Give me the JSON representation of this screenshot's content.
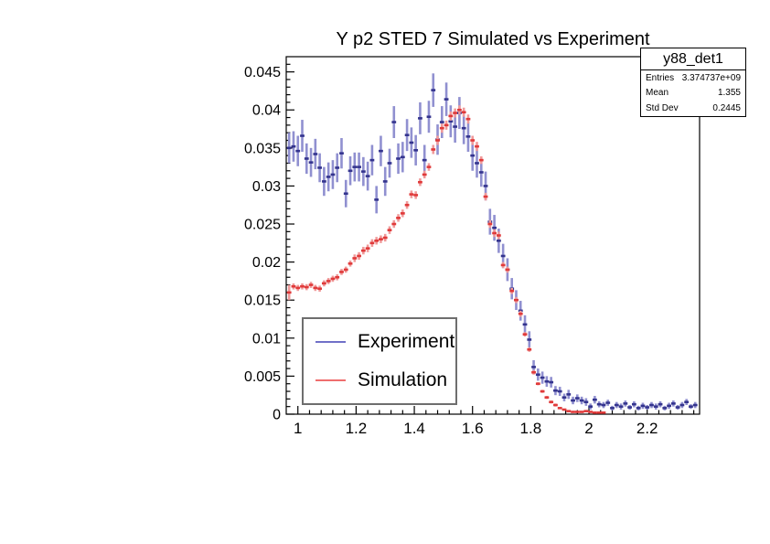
{
  "title": "Y p2 STED 7 Simulated vs Experiment",
  "stats_box": {
    "title": "y88_det1",
    "rows": [
      {
        "label": "Entries",
        "value": "3.374737e+09"
      },
      {
        "label": "Mean",
        "value": "1.355"
      },
      {
        "label": "Std Dev",
        "value": "0.2445"
      }
    ]
  },
  "legend": {
    "entries": [
      {
        "label": "Experiment",
        "color": "#7070c8"
      },
      {
        "label": "Simulation",
        "color": "#ef6e6e"
      }
    ]
  },
  "colors": {
    "frame": "#000000",
    "experiment_marker": "#34348e",
    "experiment_bar": "#9090d0",
    "simulation_marker": "#e03a3a",
    "simulation_bar": "#f09a9a"
  },
  "chart_data": {
    "type": "scatter",
    "title": "Y p2 STED 7 Simulated vs Experiment",
    "xlabel": "",
    "ylabel": "",
    "grid": false,
    "legend_position": "inside-bottom-left",
    "xlim": [
      0.96,
      2.38
    ],
    "ylim": [
      0,
      0.047
    ],
    "x_ticks": [
      1,
      1.2,
      1.4,
      1.6,
      1.8,
      2,
      2.2
    ],
    "x_tick_labels": [
      "1",
      "1.2",
      "1.4",
      "1.6",
      "1.8",
      "2",
      "2.2"
    ],
    "x_minor_step": 0.04,
    "y_ticks": [
      0,
      0.005,
      0.01,
      0.015,
      0.02,
      0.025,
      0.03,
      0.035,
      0.04,
      0.045
    ],
    "y_tick_labels": [
      "0",
      "0.005",
      "0.01",
      "0.015",
      "0.02",
      "0.025",
      "0.03",
      "0.035",
      "0.04",
      "0.045"
    ],
    "y_minor_step": 0.001,
    "series": [
      {
        "name": "Experiment",
        "marker_color": "#34348e",
        "bar_color": "#9090d0",
        "x": [
          0.97,
          0.985,
          1.0,
          1.015,
          1.03,
          1.045,
          1.06,
          1.075,
          1.09,
          1.105,
          1.12,
          1.135,
          1.15,
          1.165,
          1.18,
          1.195,
          1.21,
          1.225,
          1.24,
          1.255,
          1.27,
          1.285,
          1.3,
          1.315,
          1.33,
          1.345,
          1.36,
          1.375,
          1.39,
          1.405,
          1.42,
          1.435,
          1.45,
          1.465,
          1.48,
          1.495,
          1.51,
          1.525,
          1.54,
          1.555,
          1.57,
          1.585,
          1.6,
          1.615,
          1.63,
          1.645,
          1.66,
          1.675,
          1.69,
          1.705,
          1.72,
          1.735,
          1.75,
          1.765,
          1.78,
          1.795,
          1.81,
          1.825,
          1.84,
          1.855,
          1.87,
          1.885,
          1.9,
          1.915,
          1.93,
          1.945,
          1.96,
          1.975,
          1.99,
          2.005,
          2.02,
          2.035,
          2.05,
          2.065,
          2.08,
          2.095,
          2.11,
          2.125,
          2.14,
          2.155,
          2.17,
          2.185,
          2.2,
          2.215,
          2.23,
          2.245,
          2.26,
          2.275,
          2.29,
          2.305,
          2.32,
          2.335,
          2.35,
          2.365
        ],
        "y": [
          0.035,
          0.0352,
          0.0346,
          0.0366,
          0.0336,
          0.0331,
          0.0342,
          0.0324,
          0.0306,
          0.0312,
          0.0315,
          0.0324,
          0.0343,
          0.029,
          0.032,
          0.0325,
          0.0325,
          0.0319,
          0.0313,
          0.0334,
          0.0282,
          0.0346,
          0.0306,
          0.033,
          0.0384,
          0.0336,
          0.0338,
          0.0367,
          0.0357,
          0.0347,
          0.0389,
          0.0334,
          0.0391,
          0.0426,
          0.0361,
          0.0384,
          0.0414,
          0.0385,
          0.0378,
          0.0396,
          0.0376,
          0.0365,
          0.034,
          0.033,
          0.0318,
          0.03,
          0.0253,
          0.0245,
          0.0228,
          0.0208,
          0.019,
          0.0165,
          0.015,
          0.0136,
          0.0118,
          0.0098,
          0.0062,
          0.0052,
          0.0048,
          0.0043,
          0.0042,
          0.0031,
          0.003,
          0.0022,
          0.0026,
          0.0018,
          0.0021,
          0.0018,
          0.0016,
          0.001,
          0.0019,
          0.0013,
          0.0012,
          0.0015,
          0.0008,
          0.0012,
          0.001,
          0.0014,
          0.0009,
          0.0013,
          0.0008,
          0.0011,
          0.0009,
          0.0012,
          0.001,
          0.0013,
          0.0008,
          0.0011,
          0.0014,
          0.0009,
          0.0012,
          0.0016,
          0.001,
          0.0012
        ],
        "err": [
          0.002,
          0.002,
          0.002,
          0.0021,
          0.002,
          0.0019,
          0.002,
          0.0019,
          0.0019,
          0.0019,
          0.0019,
          0.0019,
          0.002,
          0.0018,
          0.0019,
          0.0019,
          0.0019,
          0.0019,
          0.0019,
          0.002,
          0.0018,
          0.002,
          0.0019,
          0.0019,
          0.0021,
          0.002,
          0.002,
          0.0021,
          0.002,
          0.002,
          0.0021,
          0.002,
          0.0021,
          0.0022,
          0.002,
          0.0021,
          0.0022,
          0.0021,
          0.0021,
          0.0021,
          0.0021,
          0.002,
          0.002,
          0.0019,
          0.0019,
          0.0019,
          0.0017,
          0.0017,
          0.0016,
          0.0016,
          0.0015,
          0.0014,
          0.0013,
          0.0013,
          0.0012,
          0.0011,
          0.0009,
          0.0008,
          0.0008,
          0.0007,
          0.0007,
          0.0006,
          0.0006,
          0.0005,
          0.0006,
          0.0005,
          0.0005,
          0.0005,
          0.0005,
          0.0004,
          0.0005,
          0.0004,
          0.0004,
          0.0004,
          0.0003,
          0.0004,
          0.0004,
          0.0004,
          0.0003,
          0.0004,
          0.0003,
          0.0004,
          0.0003,
          0.0004,
          0.0004,
          0.0004,
          0.0003,
          0.0004,
          0.0004,
          0.0003,
          0.0004,
          0.0004,
          0.0003,
          0.0004
        ]
      },
      {
        "name": "Simulation",
        "marker_color": "#e03a3a",
        "bar_color": "#f09a9a",
        "x": [
          0.97,
          0.985,
          1.0,
          1.015,
          1.03,
          1.045,
          1.06,
          1.075,
          1.09,
          1.105,
          1.12,
          1.135,
          1.15,
          1.165,
          1.18,
          1.195,
          1.21,
          1.225,
          1.24,
          1.255,
          1.27,
          1.285,
          1.3,
          1.315,
          1.33,
          1.345,
          1.36,
          1.375,
          1.39,
          1.405,
          1.42,
          1.435,
          1.45,
          1.465,
          1.48,
          1.495,
          1.51,
          1.525,
          1.54,
          1.555,
          1.57,
          1.585,
          1.6,
          1.615,
          1.63,
          1.645,
          1.66,
          1.675,
          1.69,
          1.705,
          1.72,
          1.735,
          1.75,
          1.765,
          1.78,
          1.795,
          1.81,
          1.825,
          1.84,
          1.855,
          1.87,
          1.885,
          1.9,
          1.915,
          1.93,
          1.945,
          1.96,
          1.975,
          1.99,
          2.005,
          2.02,
          2.035,
          2.05
        ],
        "y": [
          0.016,
          0.0168,
          0.0166,
          0.0168,
          0.0167,
          0.017,
          0.0166,
          0.0165,
          0.0172,
          0.0175,
          0.0178,
          0.018,
          0.0187,
          0.019,
          0.0198,
          0.0205,
          0.0208,
          0.0215,
          0.0218,
          0.0225,
          0.0228,
          0.023,
          0.0232,
          0.0242,
          0.025,
          0.0258,
          0.0264,
          0.0275,
          0.0289,
          0.0288,
          0.0305,
          0.0315,
          0.0325,
          0.0348,
          0.036,
          0.0376,
          0.038,
          0.0392,
          0.0396,
          0.04,
          0.0397,
          0.0388,
          0.036,
          0.0352,
          0.0334,
          0.0286,
          0.025,
          0.0238,
          0.0235,
          0.0196,
          0.019,
          0.0162,
          0.015,
          0.0132,
          0.0105,
          0.0085,
          0.0055,
          0.004,
          0.003,
          0.0022,
          0.0016,
          0.0012,
          0.0008,
          0.0006,
          0.0004,
          0.0003,
          0.0003,
          0.0003,
          0.0004,
          0.0003,
          0.0002,
          0.0002,
          0.0002
        ],
        "err": [
          0.001,
          0.0004,
          0.0004,
          0.0004,
          0.0004,
          0.0004,
          0.0004,
          0.0004,
          0.0004,
          0.0004,
          0.0004,
          0.0004,
          0.0004,
          0.0004,
          0.0004,
          0.0005,
          0.0005,
          0.0005,
          0.0005,
          0.0005,
          0.0005,
          0.0005,
          0.0005,
          0.0005,
          0.0005,
          0.0005,
          0.0005,
          0.0005,
          0.0005,
          0.0005,
          0.0005,
          0.0005,
          0.0005,
          0.0006,
          0.0006,
          0.0006,
          0.0006,
          0.0006,
          0.0006,
          0.0006,
          0.0006,
          0.0006,
          0.0006,
          0.0006,
          0.0005,
          0.0005,
          0.0005,
          0.0005,
          0.0005,
          0.0004,
          0.0004,
          0.0004,
          0.0004,
          0.0004,
          0.0003,
          0.0003,
          0.0003,
          0.0002,
          0.0002,
          0.0002,
          0.0002,
          0.0002,
          0.0001,
          0.0001,
          0.0001,
          0.0001,
          0.0001,
          0.0001,
          0.0001,
          0.0001,
          0.0001,
          0.0001,
          0.0001
        ]
      }
    ]
  }
}
